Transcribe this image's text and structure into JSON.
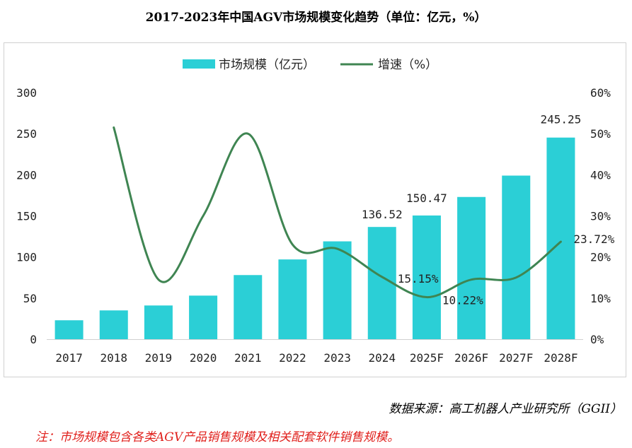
{
  "title": "2017-2023年中国AGV市场规模变化趋势（单位：亿元，%）",
  "source": "数据来源：高工机器人产业研究所（GGII）",
  "note": "注：市场规模包含各类AGV产品销售规模及相关配套软件销售规模。",
  "chart_data": {
    "type": "bar",
    "categories": [
      "2017",
      "2018",
      "2019",
      "2020",
      "2021",
      "2022",
      "2023",
      "2024",
      "2025F",
      "2026F",
      "2027F",
      "2028F"
    ],
    "series": [
      {
        "name": "市场规模（亿元）",
        "type": "bar",
        "axis": "left",
        "color": "#2bcfd6",
        "values": [
          23,
          35,
          41,
          53,
          78,
          97,
          119,
          136.52,
          150.47,
          173,
          199,
          245.25
        ]
      },
      {
        "name": "增速（%）",
        "type": "line",
        "axis": "right",
        "color": "#3f8552",
        "values": [
          null,
          51.5,
          14.5,
          30,
          50,
          23,
          22,
          15.15,
          10.22,
          14.5,
          15,
          23.72
        ]
      }
    ],
    "data_labels": [
      {
        "series": 0,
        "index": 7,
        "text": "136.52"
      },
      {
        "series": 0,
        "index": 8,
        "text": "150.47"
      },
      {
        "series": 0,
        "index": 11,
        "text": "245.25"
      },
      {
        "series": 1,
        "index": 7,
        "text": "15.15%"
      },
      {
        "series": 1,
        "index": 8,
        "text": "10.22%"
      },
      {
        "series": 1,
        "index": 11,
        "text": "23.72%"
      }
    ],
    "y_left": {
      "min": 0,
      "max": 300,
      "ticks": [
        "0",
        "50",
        "100",
        "150",
        "200",
        "250",
        "300"
      ]
    },
    "y_right": {
      "min": 0,
      "max": 60,
      "ticks": [
        "0%",
        "10%",
        "20%",
        "30%",
        "40%",
        "50%",
        "60%"
      ]
    },
    "legend": {
      "position": "top"
    },
    "grid": false
  }
}
